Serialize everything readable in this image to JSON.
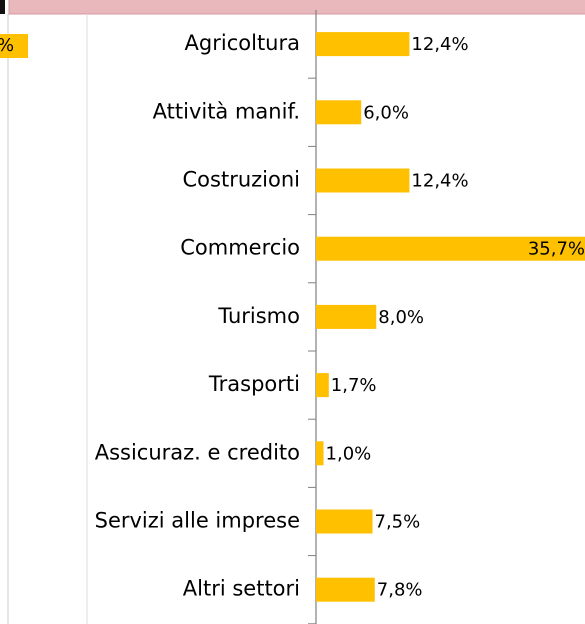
{
  "chart_data": {
    "type": "hbar",
    "categories": [
      "Agricoltura",
      "Attività manif.",
      "Costruzioni",
      "Commercio",
      "Turismo",
      "Trasporti",
      "Assicuraz. e credito",
      "Servizi alle imprese",
      "Altri settori"
    ],
    "values": [
      12.4,
      6.0,
      12.4,
      35.7,
      8.0,
      1.7,
      1.0,
      7.5,
      7.8
    ],
    "value_labels": [
      "12,4%",
      "6,0%",
      "12,4%",
      "35,7%",
      "8,0%",
      "1,7%",
      "1,0%",
      "7,5%",
      "7,8%"
    ],
    "color": "#ffc000",
    "fragment_label": "%"
  }
}
